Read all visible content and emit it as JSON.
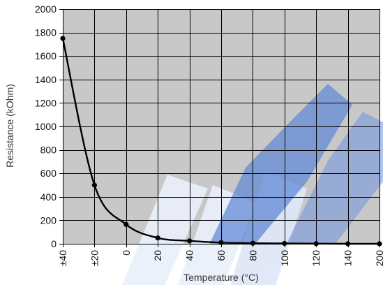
{
  "chart_data": {
    "type": "line",
    "title": "",
    "xlabel": "Temperature (°C)",
    "ylabel": "Resistance  (kOhm)",
    "x_tick_labels": [
      "±40",
      "±20",
      "0",
      "20",
      "40",
      "60",
      "80",
      "100",
      "120",
      "140",
      "200"
    ],
    "y_tick_labels": [
      "0",
      "200",
      "400",
      "600",
      "800",
      "1000",
      "1200",
      "1400",
      "1600",
      "1800",
      "2000"
    ],
    "ylim": [
      0,
      2000
    ],
    "grid": true,
    "legend": "none",
    "series": [
      {
        "categories": [
          "±40",
          "±20",
          "0",
          "20",
          "40",
          "60",
          "80",
          "100",
          "120",
          "140",
          "200"
        ],
        "values": [
          1750,
          500,
          165,
          50,
          25,
          10,
          5,
          3,
          1,
          0,
          0
        ]
      }
    ],
    "colors": {
      "plot_background": "#c8c8c8",
      "grid": "#000000",
      "line": "#000000",
      "watermark": "#3b6fd0"
    }
  }
}
